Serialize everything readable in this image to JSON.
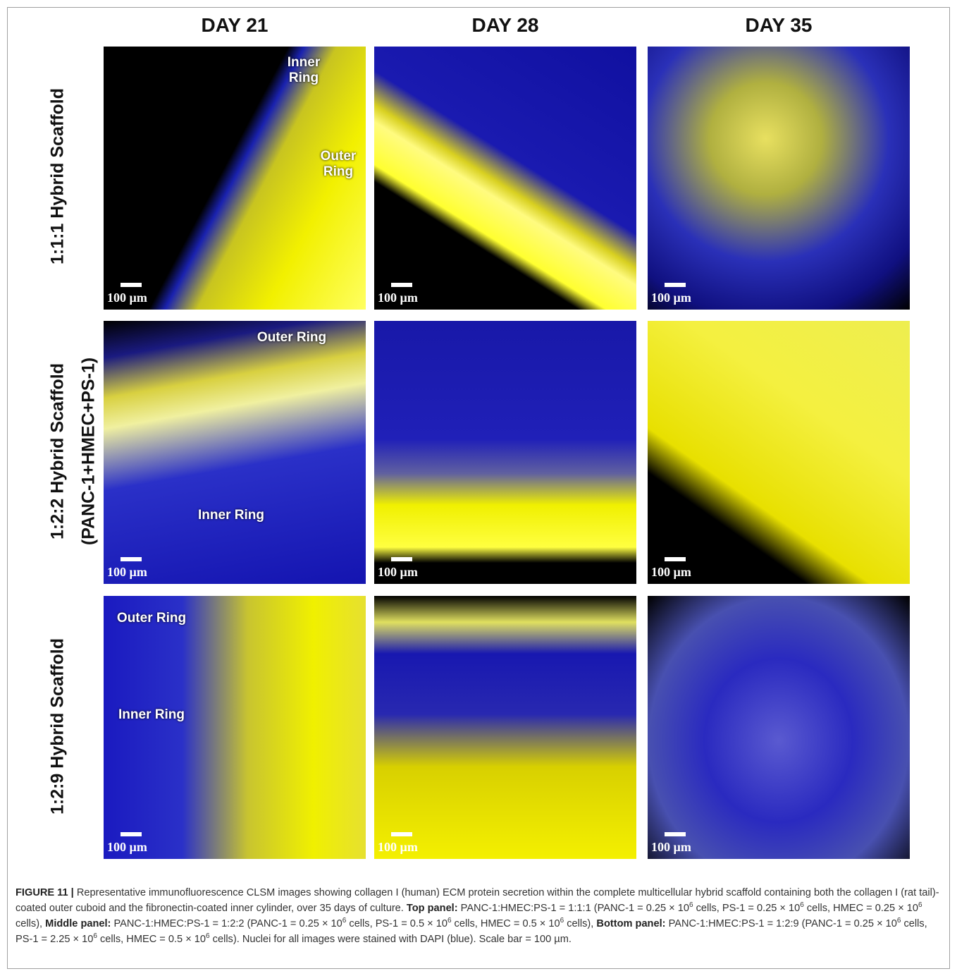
{
  "figure": {
    "column_headers": [
      "DAY 21",
      "DAY 28",
      "DAY 35"
    ],
    "rows": [
      {
        "label_lines": [
          "1:1:1 Hybrid Scaffold"
        ],
        "panels": [
          {
            "annotations": [
              "Inner Ring",
              "Outer Ring"
            ],
            "scale_label": "100 µm"
          },
          {
            "annotations": [],
            "scale_label": "100 µm"
          },
          {
            "annotations": [],
            "scale_label": "100 µm"
          }
        ]
      },
      {
        "label_lines": [
          "1:2:2  Hybrid Scaffold",
          "(PANC-1+HMEC+PS-1)"
        ],
        "panels": [
          {
            "annotations": [
              "Outer Ring",
              "Inner Ring"
            ],
            "scale_label": "100 µm"
          },
          {
            "annotations": [],
            "scale_label": "100 µm"
          },
          {
            "annotations": [],
            "scale_label": "100 µm"
          }
        ]
      },
      {
        "label_lines": [
          "1:2:9 Hybrid Scaffold"
        ],
        "panels": [
          {
            "annotations": [
              "Outer Ring",
              "Inner Ring"
            ],
            "scale_label": "100 µm"
          },
          {
            "annotations": [],
            "scale_label": "100 µm"
          },
          {
            "annotations": [],
            "scale_label": "100 µm"
          }
        ]
      }
    ],
    "caption": [
      {
        "text": "FIGURE 11 |",
        "style": "bold"
      },
      {
        "text": " Representative immunofluorescence CLSM images showing collagen I (human) ECM protein secretion within the complete multicellular hybrid scaffold containing both the collagen I (rat tail)-coated outer cuboid and the fibronectin-coated inner cylinder, over 35 days of culture. "
      },
      {
        "text": "Top panel:",
        "style": "bold"
      },
      {
        "text": " PANC-1:HMEC:PS-1 = 1:1:1 (PANC-1 = 0.25 × 10"
      },
      {
        "text": "6",
        "style": "superscript"
      },
      {
        "text": " cells, PS-1 = 0.25 × 10"
      },
      {
        "text": "6",
        "style": "superscript"
      },
      {
        "text": " cells, HMEC = 0.25 × 10"
      },
      {
        "text": "6",
        "style": "superscript"
      },
      {
        "text": " cells), "
      },
      {
        "text": "Middle panel:",
        "style": "bold"
      },
      {
        "text": " PANC-1:HMEC:PS-1 = 1:2:2 (PANC-1 = 0.25 × 10"
      },
      {
        "text": "6",
        "style": "superscript"
      },
      {
        "text": " cells, PS-1 = 0.5 × 10"
      },
      {
        "text": "6",
        "style": "superscript"
      },
      {
        "text": " cells, HMEC = 0.5 × 10"
      },
      {
        "text": "6",
        "style": "superscript"
      },
      {
        "text": " cells), "
      },
      {
        "text": "Bottom panel:",
        "style": "bold"
      },
      {
        "text": " PANC-1:HMEC:PS-1 = 1:2:9 (PANC-1 = 0.25 × 10"
      },
      {
        "text": "6",
        "style": "superscript"
      },
      {
        "text": " cells, PS-1 = 2.25 × 10"
      },
      {
        "text": "6",
        "style": "superscript"
      },
      {
        "text": " cells, HMEC = 0.5 × 10"
      },
      {
        "text": "6",
        "style": "superscript"
      },
      {
        "text": " cells). Nuclei for all images were stained with DAPI (blue). Scale bar = 100 µm."
      }
    ]
  }
}
